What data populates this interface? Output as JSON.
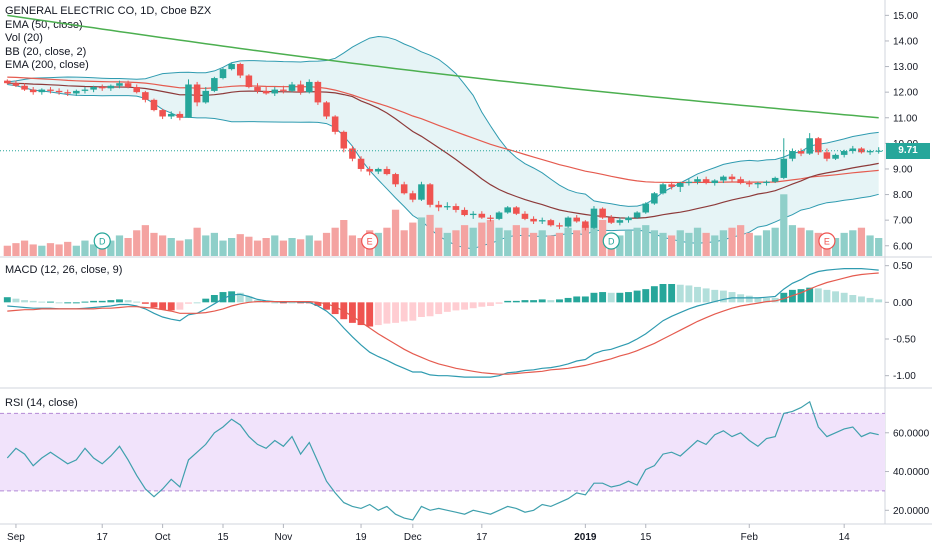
{
  "header": {
    "symbol_title": "GENERAL ELECTRIC CO, 1D, Cboe BZX",
    "indicators": [
      "EMA (50, close)",
      "Vol (20)",
      "BB (20, close, 2)",
      "EMA (200, close)"
    ]
  },
  "macd_panel": {
    "label": "MACD (12, 26, close, 9)"
  },
  "rsi_panel": {
    "label": "RSI (14, close)"
  },
  "last_price": "9.71",
  "colors": {
    "up": "#26a69a",
    "down": "#ef5350",
    "up_vol": "#8fcfc9",
    "down_vol": "#f4a3a1",
    "ema50": "#e55b4f",
    "ema200": "#4caf50",
    "bb_basis": "#8d3a3a",
    "bb_band": "#2f9bb0",
    "bb_fill": "#e6f4f6",
    "macd_line": "#2f9bb0",
    "signal_line": "#e55b4f",
    "rsi_line": "#3fa0ad",
    "rsi_band": "#f1e3fb",
    "rsi_band_border": "#b48ad6"
  },
  "chart_data": [
    {
      "type": "candlestick",
      "title": "GENERAL ELECTRIC CO, 1D, Cboe BZX",
      "price_axis": {
        "ticks": [
          "15.00",
          "14.00",
          "13.00",
          "12.00",
          "11.00",
          "10.00",
          "9.00",
          "8.00",
          "7.00",
          "6.00"
        ],
        "range": [
          5.6,
          15.6
        ]
      },
      "time_axis": {
        "ticks": [
          "Sep",
          "17",
          "Oct",
          "15",
          "Nov",
          "19",
          "Dec",
          "17",
          "2019",
          "15",
          "Feb",
          "14"
        ]
      },
      "candles": [
        [
          12.45,
          12.5,
          12.3,
          12.35
        ],
        [
          12.35,
          12.45,
          12.2,
          12.25
        ],
        [
          12.25,
          12.35,
          12.05,
          12.1
        ],
        [
          12.1,
          12.2,
          11.9,
          12.0
        ],
        [
          12.0,
          12.15,
          11.9,
          12.1
        ],
        [
          12.1,
          12.2,
          11.95,
          12.05
        ],
        [
          12.05,
          12.15,
          11.9,
          12.0
        ],
        [
          12.0,
          12.1,
          11.85,
          11.95
        ],
        [
          11.95,
          12.1,
          11.85,
          12.05
        ],
        [
          12.05,
          12.2,
          11.95,
          12.1
        ],
        [
          12.1,
          12.25,
          12.0,
          12.2
        ],
        [
          12.2,
          12.3,
          12.05,
          12.15
        ],
        [
          12.15,
          12.3,
          12.05,
          12.25
        ],
        [
          12.25,
          12.45,
          12.15,
          12.35
        ],
        [
          12.35,
          12.45,
          12.15,
          12.2
        ],
        [
          12.2,
          12.3,
          11.95,
          12.0
        ],
        [
          12.0,
          12.05,
          11.6,
          11.7
        ],
        [
          11.7,
          11.75,
          11.25,
          11.3
        ],
        [
          11.3,
          11.35,
          10.95,
          11.05
        ],
        [
          11.05,
          11.25,
          10.95,
          11.15
        ],
        [
          11.15,
          11.25,
          10.9,
          11.0
        ],
        [
          11.0,
          12.5,
          11.0,
          12.3
        ],
        [
          12.3,
          12.4,
          11.45,
          11.6
        ],
        [
          11.6,
          12.2,
          11.55,
          12.05
        ],
        [
          12.05,
          12.6,
          12.0,
          12.55
        ],
        [
          12.55,
          12.95,
          12.5,
          12.9
        ],
        [
          12.9,
          13.15,
          12.85,
          13.1
        ],
        [
          13.1,
          13.15,
          12.55,
          12.65
        ],
        [
          12.65,
          12.7,
          12.15,
          12.2
        ],
        [
          12.2,
          12.35,
          11.95,
          12.05
        ],
        [
          12.05,
          12.2,
          11.9,
          11.95
        ],
        [
          11.95,
          12.2,
          11.85,
          12.1
        ],
        [
          12.1,
          12.25,
          11.95,
          12.05
        ],
        [
          12.05,
          12.4,
          12.0,
          12.3
        ],
        [
          12.3,
          12.45,
          11.9,
          12.0
        ],
        [
          12.0,
          12.5,
          11.95,
          12.4
        ],
        [
          12.4,
          12.45,
          11.5,
          11.6
        ],
        [
          11.6,
          11.65,
          10.95,
          11.05
        ],
        [
          11.05,
          11.1,
          10.35,
          10.45
        ],
        [
          10.45,
          10.5,
          9.65,
          9.8
        ],
        [
          9.8,
          9.9,
          9.3,
          9.4
        ],
        [
          9.4,
          9.5,
          8.9,
          9.0
        ],
        [
          9.0,
          9.1,
          8.75,
          8.9
        ],
        [
          8.9,
          9.05,
          8.8,
          9.0
        ],
        [
          9.0,
          9.1,
          8.75,
          8.8
        ],
        [
          8.8,
          8.85,
          8.3,
          8.4
        ],
        [
          8.4,
          8.5,
          8.0,
          8.05
        ],
        [
          8.05,
          8.15,
          7.7,
          7.8
        ],
        [
          7.8,
          8.5,
          7.75,
          8.4
        ],
        [
          8.4,
          8.45,
          7.5,
          7.6
        ],
        [
          7.6,
          7.75,
          7.35,
          7.5
        ],
        [
          7.5,
          7.7,
          7.4,
          7.55
        ],
        [
          7.55,
          7.65,
          7.3,
          7.4
        ],
        [
          7.4,
          7.5,
          7.15,
          7.2
        ],
        [
          7.2,
          7.35,
          7.05,
          7.25
        ],
        [
          7.25,
          7.35,
          7.05,
          7.1
        ],
        [
          7.1,
          7.2,
          6.95,
          7.05
        ],
        [
          7.05,
          7.35,
          7.0,
          7.3
        ],
        [
          7.3,
          7.55,
          7.25,
          7.5
        ],
        [
          7.5,
          7.55,
          7.2,
          7.25
        ],
        [
          7.25,
          7.35,
          7.0,
          7.05
        ],
        [
          7.05,
          7.15,
          6.85,
          6.95
        ],
        [
          6.95,
          7.1,
          6.85,
          7.0
        ],
        [
          7.0,
          7.05,
          6.75,
          6.8
        ],
        [
          6.8,
          6.9,
          6.65,
          6.75
        ],
        [
          6.75,
          7.15,
          6.7,
          7.1
        ],
        [
          7.1,
          7.2,
          6.9,
          6.95
        ],
        [
          6.95,
          7.0,
          6.6,
          6.7
        ],
        [
          6.7,
          7.55,
          6.65,
          7.45
        ],
        [
          7.45,
          7.5,
          7.05,
          7.1
        ],
        [
          7.1,
          7.2,
          6.85,
          6.9
        ],
        [
          6.9,
          7.1,
          6.8,
          7.0
        ],
        [
          7.0,
          7.15,
          6.9,
          7.1
        ],
        [
          7.1,
          7.35,
          7.05,
          7.3
        ],
        [
          7.3,
          7.7,
          7.25,
          7.65
        ],
        [
          7.65,
          8.1,
          7.6,
          8.05
        ],
        [
          8.05,
          8.45,
          8.0,
          8.4
        ],
        [
          8.4,
          8.5,
          8.2,
          8.3
        ],
        [
          8.3,
          8.5,
          8.1,
          8.45
        ],
        [
          8.45,
          8.6,
          8.35,
          8.5
        ],
        [
          8.5,
          8.7,
          8.4,
          8.6
        ],
        [
          8.6,
          8.7,
          8.4,
          8.45
        ],
        [
          8.45,
          8.6,
          8.35,
          8.55
        ],
        [
          8.55,
          8.75,
          8.45,
          8.7
        ],
        [
          8.7,
          8.8,
          8.5,
          8.6
        ],
        [
          8.6,
          8.7,
          8.4,
          8.45
        ],
        [
          8.45,
          8.55,
          8.3,
          8.4
        ],
        [
          8.4,
          8.5,
          8.25,
          8.45
        ],
        [
          8.45,
          8.55,
          8.35,
          8.5
        ],
        [
          8.5,
          8.7,
          8.45,
          8.65
        ],
        [
          8.65,
          10.2,
          8.6,
          9.4
        ],
        [
          9.4,
          9.8,
          9.3,
          9.7
        ],
        [
          9.7,
          9.8,
          9.5,
          9.6
        ],
        [
          9.6,
          10.4,
          9.55,
          10.2
        ],
        [
          10.2,
          10.25,
          9.55,
          9.65
        ],
        [
          9.65,
          9.8,
          9.3,
          9.4
        ],
        [
          9.4,
          9.6,
          9.35,
          9.55
        ],
        [
          9.55,
          9.75,
          9.45,
          9.7
        ],
        [
          9.7,
          9.9,
          9.6,
          9.8
        ],
        [
          9.8,
          9.85,
          9.6,
          9.65
        ],
        [
          9.65,
          9.75,
          9.55,
          9.7
        ],
        [
          9.7,
          9.85,
          9.6,
          9.71
        ]
      ],
      "volume_scale_max": 70,
      "volume": [
        8,
        10,
        12,
        9,
        8,
        10,
        9,
        11,
        8,
        12,
        9,
        10,
        12,
        16,
        14,
        20,
        24,
        18,
        16,
        14,
        12,
        13,
        22,
        16,
        18,
        12,
        14,
        17,
        15,
        12,
        14,
        16,
        12,
        14,
        13,
        16,
        12,
        18,
        22,
        28,
        16,
        14,
        20,
        18,
        22,
        36,
        20,
        26,
        30,
        32,
        22,
        18,
        20,
        24,
        22,
        26,
        28,
        22,
        20,
        24,
        22,
        18,
        20,
        16,
        18,
        22,
        20,
        24,
        30,
        28,
        18,
        16,
        20,
        22,
        24,
        20,
        18,
        16,
        20,
        18,
        22,
        18,
        16,
        20,
        22,
        24,
        18,
        16,
        20,
        22,
        48,
        24,
        22,
        20,
        18,
        16,
        14,
        18,
        20,
        22,
        16,
        14
      ]
    },
    {
      "type": "line",
      "title": "MACD (12, 26, close, 9)",
      "axis": {
        "ticks": [
          "0.50",
          "0.00",
          "-0.50",
          "-1.00"
        ],
        "range": [
          -1.1,
          0.55
        ]
      },
      "macd": [
        -0.05,
        -0.06,
        -0.07,
        -0.08,
        -0.08,
        -0.08,
        -0.09,
        -0.09,
        -0.09,
        -0.08,
        -0.07,
        -0.06,
        -0.05,
        -0.03,
        -0.03,
        -0.05,
        -0.09,
        -0.15,
        -0.2,
        -0.23,
        -0.25,
        -0.17,
        -0.15,
        -0.09,
        -0.02,
        0.05,
        0.1,
        0.11,
        0.08,
        0.04,
        0.02,
        0.01,
        0.0,
        0.01,
        0.0,
        0.0,
        -0.05,
        -0.12,
        -0.22,
        -0.35,
        -0.47,
        -0.58,
        -0.68,
        -0.74,
        -0.79,
        -0.85,
        -0.9,
        -0.95,
        -0.95,
        -0.99,
        -1.0,
        -1.0,
        -1.01,
        -1.02,
        -1.02,
        -1.02,
        -1.02,
        -1.0,
        -0.96,
        -0.95,
        -0.93,
        -0.92,
        -0.9,
        -0.89,
        -0.87,
        -0.84,
        -0.8,
        -0.78,
        -0.7,
        -0.66,
        -0.64,
        -0.6,
        -0.56,
        -0.5,
        -0.43,
        -0.34,
        -0.25,
        -0.19,
        -0.14,
        -0.09,
        -0.05,
        -0.02,
        0.01,
        0.04,
        0.06,
        0.06,
        0.06,
        0.06,
        0.07,
        0.08,
        0.18,
        0.26,
        0.31,
        0.38,
        0.42,
        0.44,
        0.45,
        0.46,
        0.46,
        0.46,
        0.45,
        0.44
      ],
      "signal": [
        -0.12,
        -0.11,
        -0.1,
        -0.1,
        -0.09,
        -0.09,
        -0.09,
        -0.09,
        -0.09,
        -0.09,
        -0.09,
        -0.08,
        -0.08,
        -0.07,
        -0.06,
        -0.06,
        -0.07,
        -0.08,
        -0.1,
        -0.12,
        -0.15,
        -0.15,
        -0.15,
        -0.14,
        -0.12,
        -0.09,
        -0.05,
        -0.02,
        0.0,
        0.01,
        0.01,
        0.01,
        0.01,
        0.01,
        0.01,
        0.01,
        0.0,
        -0.02,
        -0.06,
        -0.12,
        -0.19,
        -0.27,
        -0.35,
        -0.43,
        -0.5,
        -0.57,
        -0.64,
        -0.7,
        -0.75,
        -0.8,
        -0.84,
        -0.87,
        -0.9,
        -0.92,
        -0.94,
        -0.96,
        -0.97,
        -0.98,
        -0.98,
        -0.97,
        -0.96,
        -0.95,
        -0.94,
        -0.92,
        -0.91,
        -0.9,
        -0.88,
        -0.86,
        -0.83,
        -0.8,
        -0.77,
        -0.73,
        -0.7,
        -0.66,
        -0.61,
        -0.56,
        -0.5,
        -0.44,
        -0.38,
        -0.32,
        -0.26,
        -0.21,
        -0.16,
        -0.12,
        -0.08,
        -0.05,
        -0.03,
        -0.01,
        0.01,
        0.02,
        0.05,
        0.09,
        0.13,
        0.18,
        0.23,
        0.27,
        0.3,
        0.33,
        0.36,
        0.38,
        0.39,
        0.4
      ]
    },
    {
      "type": "line",
      "title": "RSI (14, close)",
      "axis": {
        "ticks": [
          "60.0000",
          "40.0000",
          "20.0000"
        ],
        "range": [
          15,
          80
        ]
      },
      "band": [
        30,
        70
      ],
      "rsi": [
        47,
        52,
        49,
        43,
        47,
        50,
        47,
        44,
        46,
        52,
        47,
        44,
        48,
        53,
        46,
        38,
        31,
        27,
        31,
        36,
        32,
        46,
        50,
        54,
        60,
        63,
        67,
        64,
        58,
        54,
        52,
        56,
        53,
        58,
        49,
        55,
        45,
        35,
        29,
        24,
        22,
        21,
        23,
        20,
        22,
        18,
        16,
        15,
        22,
        20,
        21,
        20,
        19,
        18,
        20,
        19,
        18,
        20,
        22,
        21,
        19,
        20,
        23,
        22,
        24,
        26,
        29,
        28,
        34,
        34,
        32,
        33,
        35,
        33,
        41,
        43,
        49,
        50,
        48,
        52,
        56,
        54,
        59,
        61,
        58,
        60,
        56,
        53,
        57,
        58,
        70,
        71,
        73,
        76,
        63,
        58,
        60,
        62,
        63,
        58,
        60,
        59
      ]
    }
  ]
}
